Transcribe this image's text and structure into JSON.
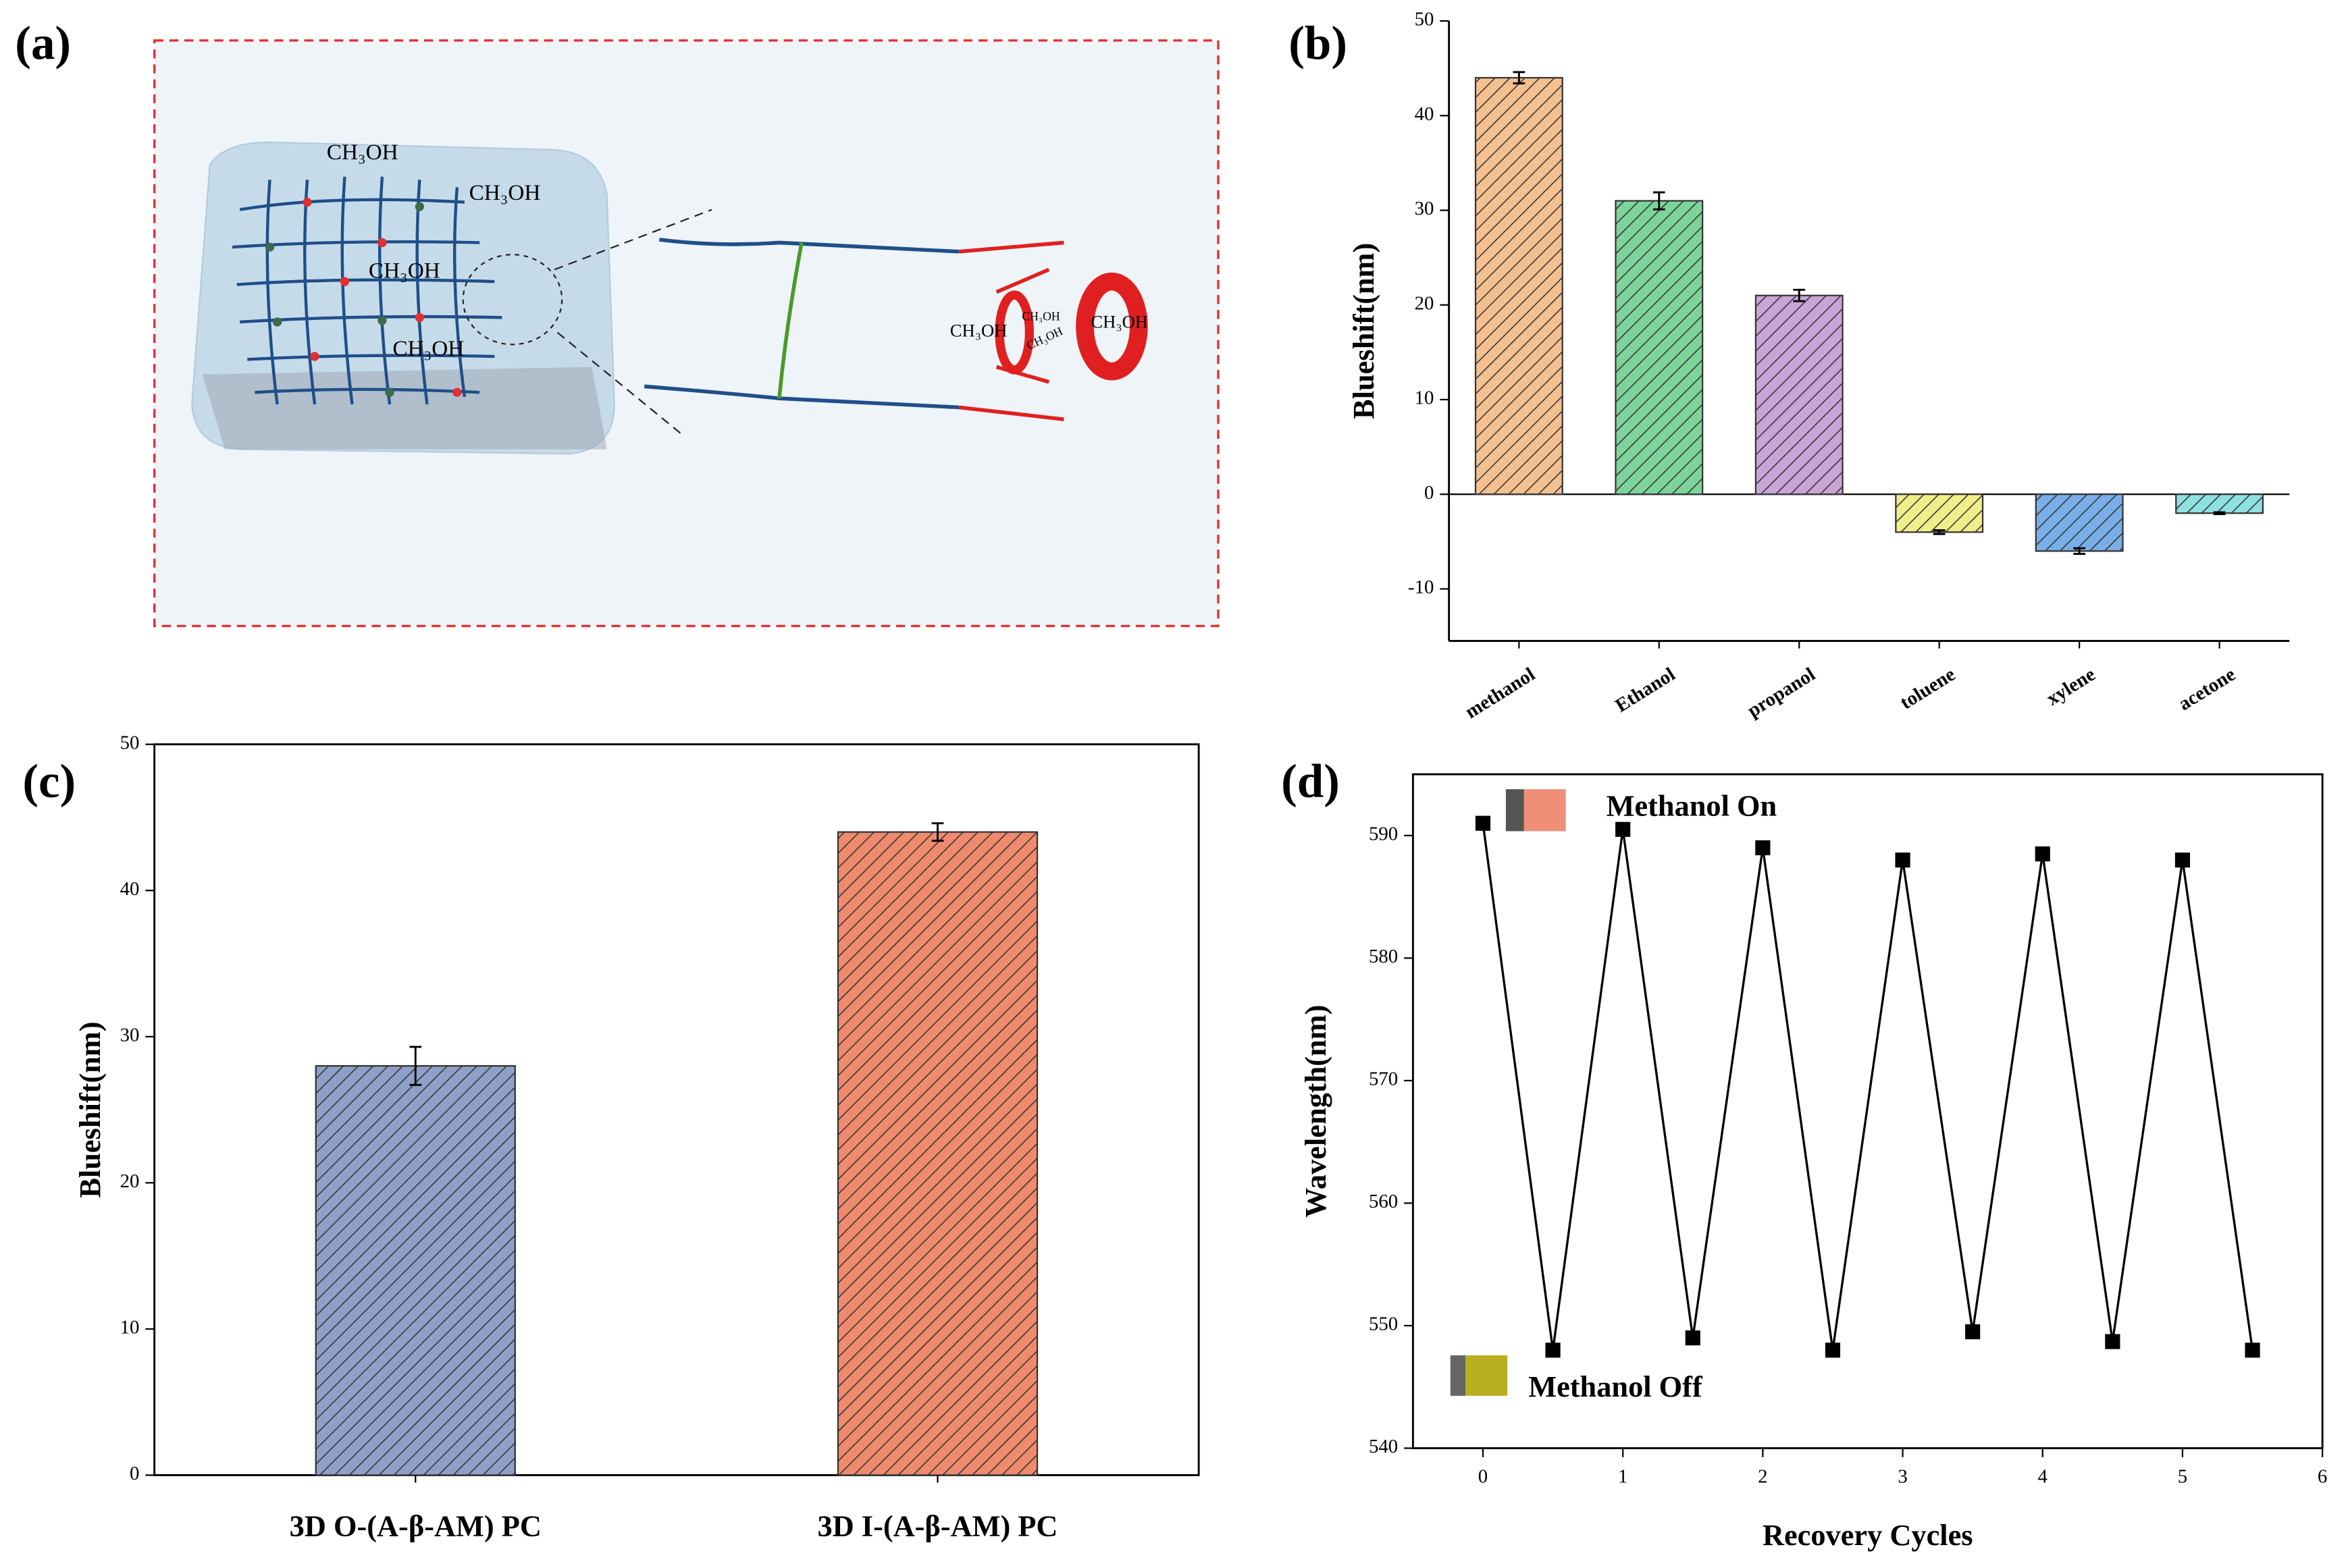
{
  "diagram": {
    "label": "(a)",
    "texts": [
      "CH₃OH",
      "CH₃OH",
      "CH₃OH",
      "CH₃OH",
      "CH₃OH",
      "CH₃OH",
      "CH₃OH",
      "CH₃OH"
    ]
  },
  "chart_data": [
    {
      "type": "bar",
      "label": "(b)",
      "ylabel": "Blueshift(nm)",
      "categories": [
        "methanol",
        "Ethanol",
        "propanol",
        "toluene",
        "xylene",
        "acetone"
      ],
      "values": [
        44,
        31,
        21,
        -4,
        -6,
        -2
      ],
      "errors": [
        0.6,
        0.9,
        0.6,
        0.2,
        0.3,
        0.1
      ],
      "colors": [
        "#f5c08f",
        "#7dd49a",
        "#c9a4d6",
        "#f0ee8a",
        "#7aaee8",
        "#8fe0e0"
      ],
      "ylim": [
        -15.5,
        50
      ],
      "yticks": [
        -10,
        0,
        10,
        20,
        30,
        40,
        50
      ],
      "hatch": true
    },
    {
      "type": "bar",
      "label": "(c)",
      "ylabel": "Blueshift(nm)",
      "categories": [
        "3D O-(A-β-AM) PC",
        "3D I-(A-β-AM) PC"
      ],
      "values": [
        28,
        44
      ],
      "errors": [
        1.3,
        0.6
      ],
      "colors": [
        "#8fa0c8",
        "#f08a6e"
      ],
      "ylim": [
        0,
        50
      ],
      "yticks": [
        0,
        10,
        20,
        30,
        40,
        50
      ],
      "hatch": true
    },
    {
      "type": "line",
      "label": "(d)",
      "xlabel": "Recovery Cycles",
      "ylabel": "Wavelength(nm)",
      "annotations": [
        "Methanol On",
        "Methanol Off"
      ],
      "x": [
        0,
        0.5,
        1,
        1.5,
        2,
        2.5,
        3,
        3.5,
        4,
        4.5,
        5,
        5.5
      ],
      "values": [
        591,
        548,
        590.5,
        549,
        589,
        548,
        588,
        549.5,
        588.5,
        548.7,
        588,
        548
      ],
      "color": "#000000",
      "xlim": [
        -0.5,
        6
      ],
      "xticks": [
        0,
        1,
        2,
        3,
        4,
        5,
        6
      ],
      "ylim": [
        540,
        595
      ],
      "yticks": [
        540,
        550,
        560,
        570,
        580,
        590
      ]
    }
  ]
}
